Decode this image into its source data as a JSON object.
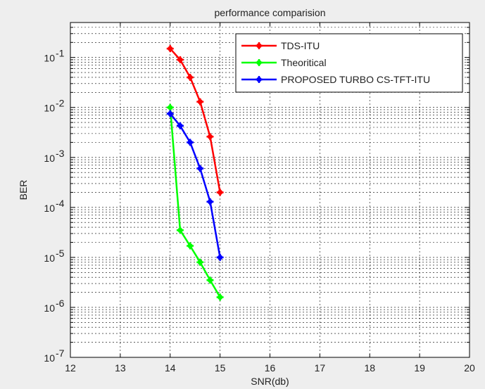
{
  "chart_data": {
    "type": "line",
    "title": "performance comparision",
    "xlabel": "SNR(db)",
    "ylabel": "BER",
    "xlim": [
      12,
      20
    ],
    "ylim": [
      1e-07,
      0.5
    ],
    "yscale": "log",
    "grid": true,
    "legend_position": "top-right",
    "x_ticks": [
      "12",
      "13",
      "14",
      "15",
      "16",
      "17",
      "18",
      "19",
      "20"
    ],
    "y_ticks": [
      {
        "base": "10",
        "exp": "-7"
      },
      {
        "base": "10",
        "exp": "-6"
      },
      {
        "base": "10",
        "exp": "-5"
      },
      {
        "base": "10",
        "exp": "-4"
      },
      {
        "base": "10",
        "exp": "-3"
      },
      {
        "base": "10",
        "exp": "-2"
      },
      {
        "base": "10",
        "exp": "-1"
      }
    ],
    "series": [
      {
        "name": "TDS-ITU",
        "color": "#ff0000",
        "x": [
          14,
          14.2,
          14.4,
          14.6,
          14.8,
          15
        ],
        "y": [
          0.15,
          0.09,
          0.04,
          0.013,
          0.0026,
          0.0002
        ]
      },
      {
        "name": "Theoritical",
        "color": "#00ff00",
        "x": [
          14,
          14.2,
          14.4,
          14.6,
          14.8,
          15
        ],
        "y": [
          0.01,
          3.5e-05,
          1.7e-05,
          8e-06,
          3.5e-06,
          1.6e-06
        ]
      },
      {
        "name": "PROPOSED TURBO CS-TFT-ITU",
        "color": "#0000ff",
        "x": [
          14,
          14.2,
          14.4,
          14.6,
          14.8,
          15
        ],
        "y": [
          0.0075,
          0.0043,
          0.002,
          0.0006,
          0.00013,
          1e-05
        ]
      }
    ]
  }
}
